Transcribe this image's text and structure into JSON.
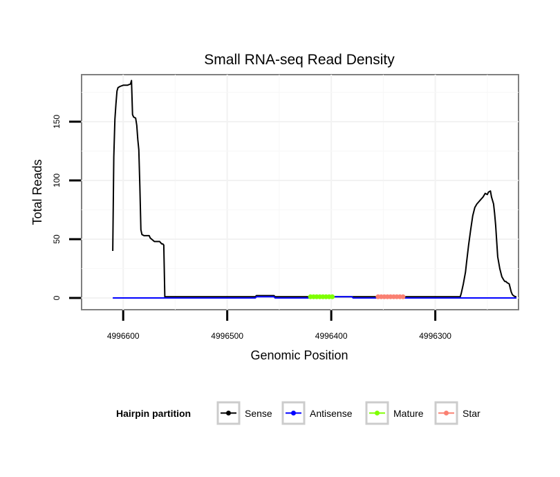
{
  "chart_data": {
    "type": "line",
    "title": "Small RNA-seq Read Density",
    "xlabel": "Genomic Position",
    "ylabel": "Total Reads",
    "x_reversed": true,
    "xlim": [
      4996220,
      4996640
    ],
    "ylim": [
      -10,
      190
    ],
    "x_ticks": [
      4996600,
      4996500,
      4996400,
      4996300
    ],
    "x_tick_labels": [
      "4996600",
      "4996500",
      "4996400",
      "4996300"
    ],
    "y_ticks": [
      0,
      50,
      100,
      150
    ],
    "y_tick_labels": [
      "0",
      "50",
      "100",
      "150"
    ],
    "grid": true,
    "legend": {
      "title": "Hairpin partition",
      "position": "bottom",
      "entries": [
        {
          "label": "Sense",
          "color": "#000000"
        },
        {
          "label": "Antisense",
          "color": "#0000ff"
        },
        {
          "label": "Mature",
          "color": "#7fff00"
        },
        {
          "label": "Star",
          "color": "#fa8072"
        }
      ]
    },
    "series": [
      {
        "name": "Sense",
        "color": "#000000",
        "x": [
          4996610,
          4996609,
          4996608,
          4996607,
          4996606,
          4996605,
          4996603,
          4996600,
          4996596,
          4996593,
          4996592,
          4996591,
          4996590,
          4996588,
          4996587,
          4996586,
          4996585,
          4996584,
          4996583,
          4996582,
          4996580,
          4996575,
          4996574,
          4996570,
          4996565,
          4996563,
          4996562,
          4996561,
          4996560,
          4996550,
          4996500,
          4996473,
          4996472,
          4996455,
          4996454,
          4996445,
          4996420,
          4996380,
          4996355,
          4996320,
          4996300,
          4996276,
          4996275,
          4996274,
          4996273,
          4996271,
          4996270,
          4996268,
          4996266,
          4996264,
          4996262,
          4996260,
          4996258,
          4996256,
          4996255,
          4996254,
          4996252,
          4996250,
          4996249,
          4996247,
          4996246,
          4996244,
          4996243,
          4996242,
          4996240,
          4996239,
          4996238,
          4996236,
          4996234,
          4996233,
          4996232,
          4996231,
          4996229,
          4996227,
          4996226,
          4996225,
          4996223,
          4996222
        ],
        "y": [
          40,
          120,
          152,
          165,
          176,
          179,
          180,
          181,
          181,
          182,
          185,
          156,
          154,
          153,
          147,
          135,
          126,
          95,
          58,
          54,
          53,
          53,
          51,
          48,
          48,
          46,
          46,
          45,
          1,
          1,
          1,
          1,
          2,
          2,
          1,
          1,
          1,
          1,
          1,
          1,
          1,
          1,
          4,
          8,
          12,
          22,
          30,
          45,
          58,
          70,
          77,
          80,
          82,
          84,
          85,
          86,
          89,
          88,
          90,
          91,
          86,
          80,
          72,
          62,
          35,
          30,
          25,
          18,
          15,
          14,
          14,
          13,
          12,
          5,
          3,
          2,
          1,
          1
        ]
      },
      {
        "name": "Antisense",
        "color": "#0000ff",
        "x": [
          4996610,
          4996500,
          4996473,
          4996472,
          4996455,
          4996454,
          4996400,
          4996399,
          4996380,
          4996379,
          4996222
        ],
        "y": [
          0,
          0,
          0,
          1,
          1,
          0,
          0,
          1,
          1,
          0,
          0
        ]
      },
      {
        "name": "Mature",
        "color": "#7fff00",
        "x": [
          4996420,
          4996417,
          4996414,
          4996411,
          4996408,
          4996405,
          4996402,
          4996399
        ],
        "y": [
          1,
          1,
          1,
          1,
          1,
          1,
          1,
          1
        ]
      },
      {
        "name": "Star",
        "color": "#fa8072",
        "x": [
          4996355,
          4996352,
          4996349,
          4996346,
          4996343,
          4996340,
          4996337,
          4996334,
          4996331
        ],
        "y": [
          1,
          1,
          1,
          1,
          1,
          1,
          1,
          1,
          1
        ]
      }
    ]
  }
}
